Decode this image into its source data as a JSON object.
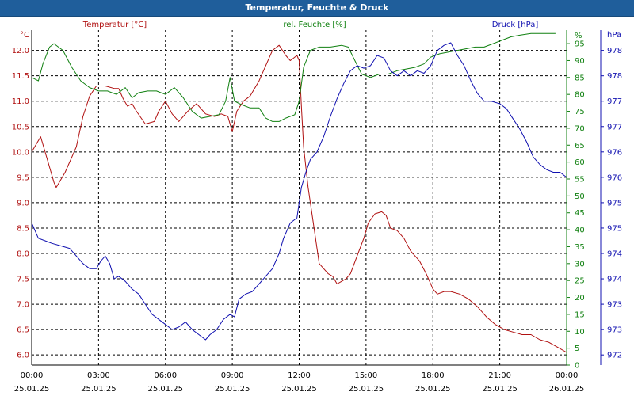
{
  "window": {
    "title": "Temperatur, Feuchte & Druck"
  },
  "colors": {
    "temperature": "#b01010",
    "humidity": "#108010",
    "pressure": "#1010b0",
    "titlebar": "#1f5e9b",
    "grid": "#000000"
  },
  "chart_data": {
    "type": "line",
    "title": "Temperatur, Feuchte & Druck",
    "grid": true,
    "x": {
      "range_hours": [
        0,
        24
      ],
      "ticks": [
        {
          "time": "00:00",
          "date": "25.01.25"
        },
        {
          "time": "03:00",
          "date": "25.01.25"
        },
        {
          "time": "06:00",
          "date": "25.01.25"
        },
        {
          "time": "09:00",
          "date": "25.01.25"
        },
        {
          "time": "12:00",
          "date": "25.01.25"
        },
        {
          "time": "15:00",
          "date": "25.01.25"
        },
        {
          "time": "18:00",
          "date": "25.01.25"
        },
        {
          "time": "21:00",
          "date": "25.01.25"
        },
        {
          "time": "00:00",
          "date": "26.01.25"
        }
      ]
    },
    "axes": {
      "temperature": {
        "label": "Temperatur [°C]",
        "unit": "°C",
        "range": [
          5.8,
          12.4
        ],
        "ticks": [
          "6.0",
          "6.5",
          "7.0",
          "7.5",
          "8.0",
          "8.5",
          "9.0",
          "9.5",
          "10.0",
          "10.5",
          "11.0",
          "11.5",
          "12.0"
        ]
      },
      "humidity": {
        "label": "rel. Feuchte [%]",
        "unit": "%",
        "range": [
          0,
          99
        ],
        "ticks": [
          "0",
          "5",
          "10",
          "15",
          "20",
          "25",
          "30",
          "35",
          "40",
          "45",
          "50",
          "55",
          "60",
          "65",
          "70",
          "75",
          "80",
          "85",
          "90",
          "95"
        ]
      },
      "pressure": {
        "label": "Druck [hPa]",
        "unit": "hPa",
        "range": [
          971.8,
          978.4
        ],
        "ticks": [
          "972",
          "973",
          "973",
          "974",
          "974",
          "975",
          "975",
          "976",
          "976",
          "977",
          "977",
          "978",
          "978"
        ]
      }
    },
    "series": [
      {
        "name": "Temperatur [°C]",
        "axis": "temperature",
        "points": [
          [
            0.0,
            10.0
          ],
          [
            0.4,
            10.3
          ],
          [
            0.8,
            9.7
          ],
          [
            1.0,
            9.4
          ],
          [
            1.1,
            9.3
          ],
          [
            1.5,
            9.6
          ],
          [
            2.0,
            10.1
          ],
          [
            2.3,
            10.7
          ],
          [
            2.6,
            11.1
          ],
          [
            2.9,
            11.3
          ],
          [
            3.3,
            11.3
          ],
          [
            3.7,
            11.25
          ],
          [
            3.9,
            11.25
          ],
          [
            4.1,
            11.05
          ],
          [
            4.3,
            10.9
          ],
          [
            4.5,
            10.95
          ],
          [
            4.7,
            10.8
          ],
          [
            5.1,
            10.55
          ],
          [
            5.5,
            10.6
          ],
          [
            5.7,
            10.8
          ],
          [
            6.0,
            11.0
          ],
          [
            6.3,
            10.75
          ],
          [
            6.6,
            10.6
          ],
          [
            7.0,
            10.8
          ],
          [
            7.4,
            10.95
          ],
          [
            7.8,
            10.75
          ],
          [
            8.2,
            10.7
          ],
          [
            8.5,
            10.75
          ],
          [
            8.8,
            10.7
          ],
          [
            9.0,
            10.4
          ],
          [
            9.2,
            10.8
          ],
          [
            9.5,
            11.0
          ],
          [
            9.8,
            11.1
          ],
          [
            10.2,
            11.4
          ],
          [
            10.5,
            11.7
          ],
          [
            10.8,
            12.0
          ],
          [
            11.1,
            12.1
          ],
          [
            11.4,
            11.9
          ],
          [
            11.6,
            11.8
          ],
          [
            11.9,
            11.9
          ],
          [
            12.0,
            11.8
          ],
          [
            12.1,
            10.9
          ],
          [
            12.2,
            10.1
          ],
          [
            12.4,
            9.3
          ],
          [
            12.6,
            8.7
          ],
          [
            12.8,
            8.1
          ],
          [
            12.9,
            7.8
          ],
          [
            13.1,
            7.7
          ],
          [
            13.3,
            7.6
          ],
          [
            13.5,
            7.55
          ],
          [
            13.7,
            7.4
          ],
          [
            13.9,
            7.45
          ],
          [
            14.1,
            7.5
          ],
          [
            14.3,
            7.6
          ],
          [
            14.6,
            7.95
          ],
          [
            14.9,
            8.3
          ],
          [
            15.1,
            8.6
          ],
          [
            15.4,
            8.78
          ],
          [
            15.7,
            8.82
          ],
          [
            15.9,
            8.75
          ],
          [
            16.1,
            8.5
          ],
          [
            16.4,
            8.45
          ],
          [
            16.7,
            8.3
          ],
          [
            17.0,
            8.05
          ],
          [
            17.4,
            7.85
          ],
          [
            17.7,
            7.6
          ],
          [
            18.0,
            7.3
          ],
          [
            18.2,
            7.2
          ],
          [
            18.5,
            7.25
          ],
          [
            18.8,
            7.25
          ],
          [
            19.2,
            7.2
          ],
          [
            19.6,
            7.1
          ],
          [
            20.0,
            6.95
          ],
          [
            20.4,
            6.75
          ],
          [
            20.8,
            6.6
          ],
          [
            21.2,
            6.5
          ],
          [
            21.6,
            6.45
          ],
          [
            22.0,
            6.4
          ],
          [
            22.4,
            6.4
          ],
          [
            22.8,
            6.3
          ],
          [
            23.2,
            6.25
          ],
          [
            23.6,
            6.15
          ],
          [
            24.0,
            6.05
          ]
        ]
      },
      {
        "name": "rel. Feuchte [%]",
        "axis": "humidity",
        "points": [
          [
            0.0,
            85
          ],
          [
            0.3,
            84
          ],
          [
            0.5,
            89
          ],
          [
            0.8,
            94
          ],
          [
            1.0,
            95
          ],
          [
            1.4,
            93
          ],
          [
            1.8,
            88
          ],
          [
            2.2,
            84
          ],
          [
            2.6,
            82
          ],
          [
            3.0,
            81
          ],
          [
            3.4,
            81
          ],
          [
            3.8,
            80
          ],
          [
            4.2,
            82
          ],
          [
            4.5,
            79
          ],
          [
            4.8,
            80.5
          ],
          [
            5.2,
            81
          ],
          [
            5.6,
            81
          ],
          [
            6.0,
            80
          ],
          [
            6.4,
            82
          ],
          [
            6.8,
            79
          ],
          [
            7.2,
            75
          ],
          [
            7.6,
            73
          ],
          [
            8.0,
            73.5
          ],
          [
            8.4,
            74
          ],
          [
            8.7,
            78
          ],
          [
            8.9,
            85
          ],
          [
            9.1,
            78
          ],
          [
            9.4,
            77
          ],
          [
            9.8,
            76
          ],
          [
            10.2,
            76
          ],
          [
            10.5,
            73
          ],
          [
            10.8,
            72
          ],
          [
            11.1,
            72
          ],
          [
            11.4,
            73
          ],
          [
            11.8,
            74
          ],
          [
            12.0,
            78
          ],
          [
            12.2,
            88
          ],
          [
            12.5,
            93
          ],
          [
            12.9,
            94
          ],
          [
            13.4,
            94
          ],
          [
            13.9,
            94.5
          ],
          [
            14.2,
            94
          ],
          [
            14.5,
            90
          ],
          [
            14.8,
            86
          ],
          [
            15.2,
            85
          ],
          [
            15.6,
            86
          ],
          [
            16.0,
            86
          ],
          [
            16.4,
            87
          ],
          [
            16.8,
            87.5
          ],
          [
            17.2,
            88
          ],
          [
            17.6,
            89
          ],
          [
            17.9,
            91
          ],
          [
            18.3,
            92
          ],
          [
            18.7,
            92.5
          ],
          [
            19.1,
            93
          ],
          [
            19.5,
            93.5
          ],
          [
            19.9,
            94
          ],
          [
            20.3,
            94
          ],
          [
            20.7,
            95
          ],
          [
            21.1,
            96
          ],
          [
            21.5,
            97
          ],
          [
            21.9,
            97.5
          ],
          [
            22.4,
            98
          ],
          [
            23.0,
            98
          ],
          [
            23.5,
            98
          ]
        ]
      },
      {
        "name": "Druck [hPa]",
        "axis": "pressure",
        "points": [
          [
            0.0,
            974.6
          ],
          [
            0.3,
            974.3
          ],
          [
            0.6,
            974.25
          ],
          [
            0.9,
            974.2
          ],
          [
            1.3,
            974.15
          ],
          [
            1.7,
            974.1
          ],
          [
            2.0,
            973.95
          ],
          [
            2.3,
            973.8
          ],
          [
            2.6,
            973.7
          ],
          [
            2.9,
            973.7
          ],
          [
            3.1,
            973.85
          ],
          [
            3.3,
            973.95
          ],
          [
            3.5,
            973.8
          ],
          [
            3.7,
            973.5
          ],
          [
            3.9,
            973.55
          ],
          [
            4.2,
            973.45
          ],
          [
            4.5,
            973.3
          ],
          [
            4.8,
            973.2
          ],
          [
            5.1,
            973.0
          ],
          [
            5.4,
            972.8
          ],
          [
            5.7,
            972.7
          ],
          [
            6.0,
            972.6
          ],
          [
            6.3,
            972.5
          ],
          [
            6.6,
            972.55
          ],
          [
            6.9,
            972.65
          ],
          [
            7.2,
            972.5
          ],
          [
            7.5,
            972.4
          ],
          [
            7.8,
            972.3
          ],
          [
            8.0,
            972.4
          ],
          [
            8.3,
            972.5
          ],
          [
            8.6,
            972.7
          ],
          [
            8.9,
            972.8
          ],
          [
            9.1,
            972.75
          ],
          [
            9.3,
            973.1
          ],
          [
            9.6,
            973.2
          ],
          [
            9.9,
            973.25
          ],
          [
            10.2,
            973.4
          ],
          [
            10.5,
            973.55
          ],
          [
            10.8,
            973.7
          ],
          [
            11.1,
            974.0
          ],
          [
            11.3,
            974.3
          ],
          [
            11.6,
            974.6
          ],
          [
            11.9,
            974.7
          ],
          [
            12.1,
            975.3
          ],
          [
            12.3,
            975.6
          ],
          [
            12.5,
            975.85
          ],
          [
            12.8,
            976.0
          ],
          [
            13.1,
            976.3
          ],
          [
            13.4,
            976.7
          ],
          [
            13.7,
            977.05
          ],
          [
            14.0,
            977.35
          ],
          [
            14.3,
            977.6
          ],
          [
            14.6,
            977.7
          ],
          [
            14.9,
            977.65
          ],
          [
            15.2,
            977.7
          ],
          [
            15.5,
            977.9
          ],
          [
            15.8,
            977.85
          ],
          [
            16.1,
            977.6
          ],
          [
            16.4,
            977.5
          ],
          [
            16.7,
            977.6
          ],
          [
            17.0,
            977.5
          ],
          [
            17.3,
            977.6
          ],
          [
            17.6,
            977.55
          ],
          [
            17.9,
            977.7
          ],
          [
            18.2,
            978.0
          ],
          [
            18.5,
            978.1
          ],
          [
            18.8,
            978.15
          ],
          [
            19.1,
            977.9
          ],
          [
            19.4,
            977.7
          ],
          [
            19.7,
            977.4
          ],
          [
            20.0,
            977.15
          ],
          [
            20.3,
            977.0
          ],
          [
            20.6,
            977.0
          ],
          [
            21.0,
            976.95
          ],
          [
            21.3,
            976.85
          ],
          [
            21.6,
            976.65
          ],
          [
            21.9,
            976.45
          ],
          [
            22.2,
            976.2
          ],
          [
            22.5,
            975.9
          ],
          [
            22.8,
            975.75
          ],
          [
            23.1,
            975.65
          ],
          [
            23.4,
            975.6
          ],
          [
            23.7,
            975.6
          ],
          [
            24.0,
            975.5
          ]
        ]
      }
    ]
  }
}
